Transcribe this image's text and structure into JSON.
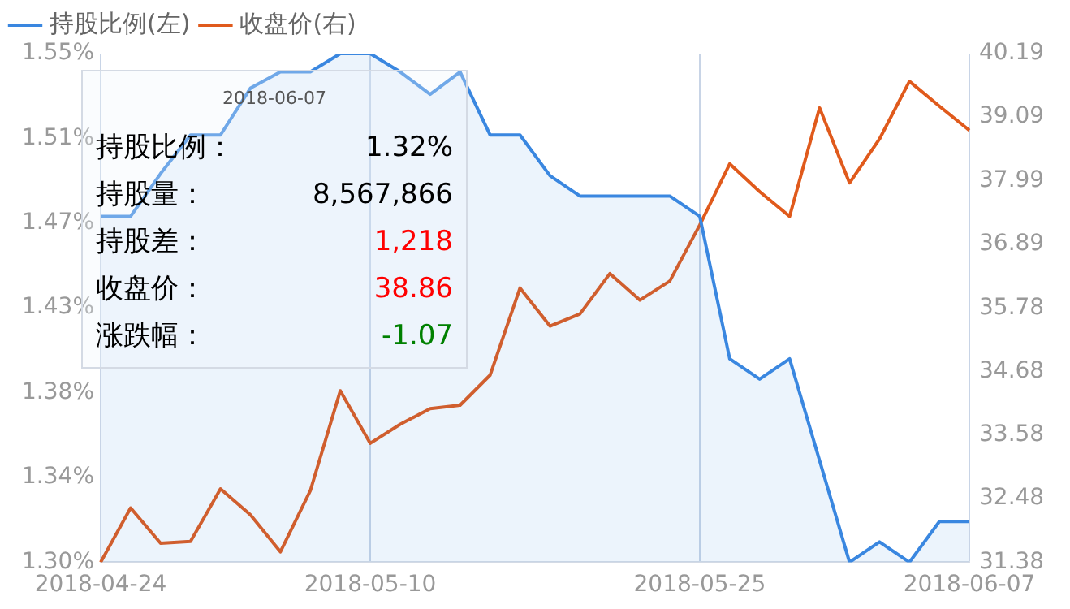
{
  "chart_data": {
    "type": "line",
    "categories": [
      "2018-04-24",
      null,
      null,
      null,
      null,
      null,
      null,
      null,
      null,
      "2018-05-10",
      null,
      null,
      null,
      null,
      null,
      null,
      null,
      null,
      null,
      null,
      "2018-05-25",
      null,
      null,
      null,
      null,
      null,
      null,
      null,
      null,
      "2018-06-07"
    ],
    "series": [
      {
        "name": "持股比例(左)",
        "type": "area",
        "color": "#3a87e0",
        "values": [
          1.47,
          1.47,
          1.491,
          1.51,
          1.51,
          1.533,
          1.541,
          1.541,
          1.55,
          1.55,
          1.541,
          1.53,
          1.541,
          1.51,
          1.51,
          1.49,
          1.48,
          1.48,
          1.48,
          1.48,
          1.47,
          1.4,
          1.39,
          1.4,
          1.35,
          1.3,
          1.31,
          1.3,
          1.32,
          1.32
        ]
      },
      {
        "name": "收盘价(右)",
        "type": "line",
        "axis": "y2",
        "color": "#e05a1c",
        "values": [
          31.38,
          32.32,
          31.71,
          31.74,
          32.65,
          32.2,
          31.56,
          32.62,
          34.35,
          33.44,
          33.77,
          34.04,
          34.1,
          34.62,
          36.13,
          35.47,
          35.68,
          36.38,
          35.92,
          36.25,
          37.22,
          38.28,
          37.8,
          37.37,
          39.25,
          37.95,
          38.71,
          39.71,
          39.28,
          38.86
        ]
      }
    ],
    "ylim": [
      1.3,
      1.55
    ],
    "yticks": [
      {
        "value": 1.3,
        "label": "1.30%"
      },
      {
        "value": 1.3416667,
        "label": "1.34%"
      },
      {
        "value": 1.3833333,
        "label": "1.38%"
      },
      {
        "value": 1.425,
        "label": "1.43%"
      },
      {
        "value": 1.4666667,
        "label": "1.47%"
      },
      {
        "value": 1.5083333,
        "label": "1.51%"
      },
      {
        "value": 1.55,
        "label": "1.55%"
      }
    ],
    "y2lim": [
      31.38,
      40.19
    ],
    "y2ticks": [
      31.38,
      32.48,
      33.58,
      34.68,
      35.78,
      36.89,
      37.99,
      39.09,
      40.19
    ],
    "grid": "x",
    "legend": "top left",
    "marker": "none",
    "line_style": "solid",
    "annotations": [
      "2018-06-07",
      "持股比例：",
      "1.32%",
      "持股量：",
      "8,567,866",
      "持股差：",
      "1,218",
      "收盘价：",
      "38.86",
      "涨跌幅：",
      "-1.07"
    ]
  }
}
